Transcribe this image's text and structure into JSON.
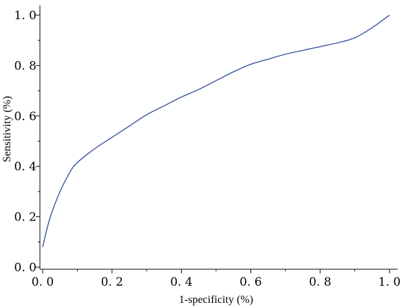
{
  "chart_data": {
    "type": "line",
    "title": "",
    "xlabel": "1-specificity (%)",
    "ylabel": "Sensitivity (%)",
    "xlim": [
      0,
      1
    ],
    "ylim": [
      0,
      1
    ],
    "grid": false,
    "x_ticks": [
      0,
      0.2,
      0.4,
      0.6,
      0.8,
      1.0
    ],
    "x_tick_labels": [
      "0. 0",
      "0. 2",
      "0. 4",
      "0. 6",
      "0. 8",
      "1. 0"
    ],
    "y_ticks": [
      0,
      0.2,
      0.4,
      0.6,
      0.8,
      1.0
    ],
    "y_tick_labels": [
      "0. 0",
      "0. 2",
      "0. 4",
      "0. 6",
      "0. 8",
      "1. 0"
    ],
    "series": [
      {
        "color": "#3a55a4",
        "x": [
          0.0,
          0.02,
          0.05,
          0.08,
          0.1,
          0.15,
          0.2,
          0.25,
          0.3,
          0.35,
          0.4,
          0.45,
          0.5,
          0.55,
          0.6,
          0.65,
          0.7,
          0.75,
          0.8,
          0.85,
          0.9,
          0.95,
          1.0
        ],
        "y": [
          0.08,
          0.19,
          0.3,
          0.38,
          0.415,
          0.47,
          0.515,
          0.56,
          0.605,
          0.64,
          0.675,
          0.705,
          0.74,
          0.775,
          0.805,
          0.825,
          0.845,
          0.86,
          0.875,
          0.89,
          0.91,
          0.95,
          1.0
        ]
      }
    ]
  }
}
